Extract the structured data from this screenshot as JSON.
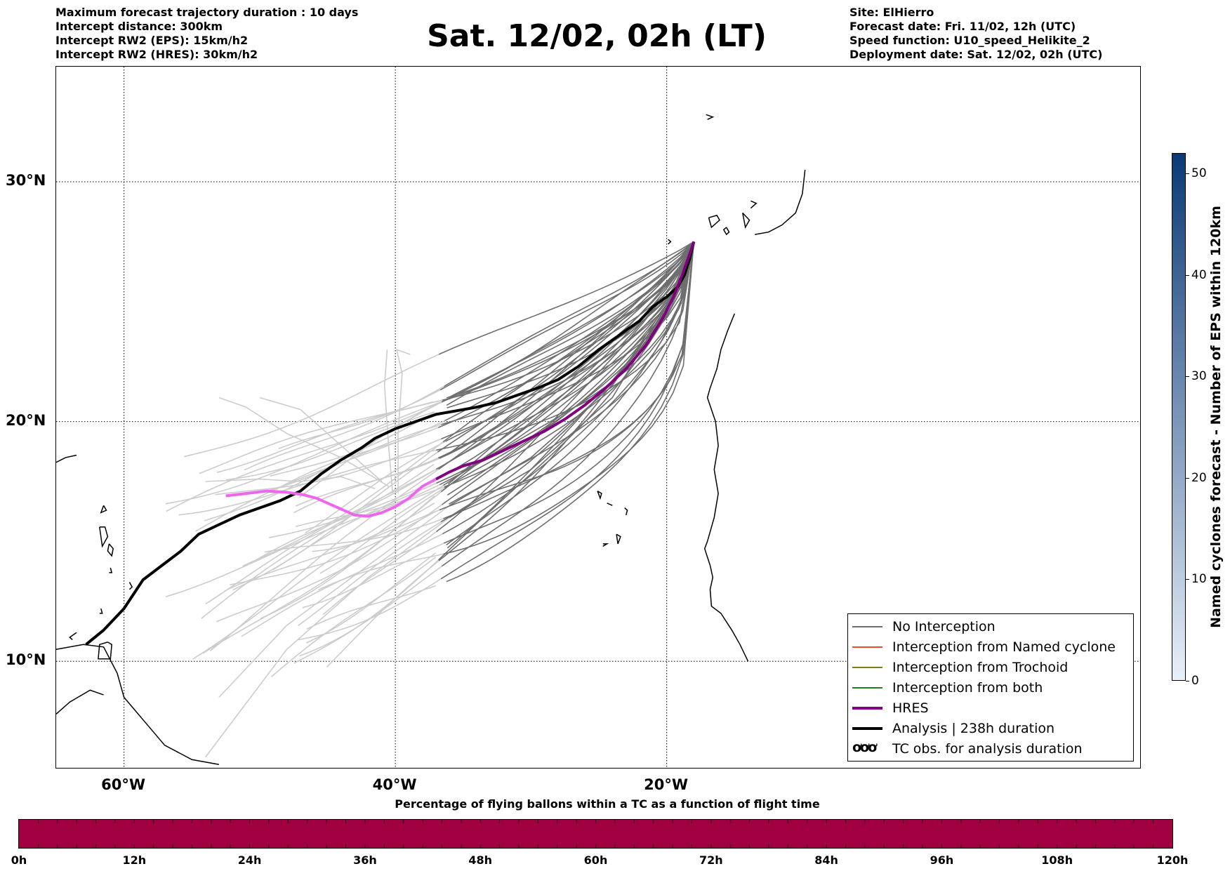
{
  "header": {
    "left_lines": [
      "Maximum forecast trajectory duration : 10 days",
      "Intercept distance: 300km",
      "Intercept RW2 (EPS):  15km/h2",
      "Intercept RW2 (HRES): 30km/h2"
    ],
    "title": "Sat. 12/02, 02h (LT)",
    "right_lines": [
      "Site: ElHierro",
      "Forecast date: Fri. 11/02, 12h (UTC)",
      "Speed function: U10_speed_Helikite_2",
      "Deployment date: Sat. 12/02, 02h (UTC)"
    ]
  },
  "map": {
    "lon_range": [
      -65,
      15
    ],
    "lat_range": [
      5.5,
      34.8
    ],
    "lat_ticks": [
      {
        "value": 30,
        "label": "30°N"
      },
      {
        "value": 20,
        "label": "20°N"
      },
      {
        "value": 10,
        "label": "10°N"
      }
    ],
    "lon_ticks": [
      {
        "value": -60,
        "label": "60°W"
      },
      {
        "value": -40,
        "label": "40°W"
      },
      {
        "value": -20,
        "label": "20°W"
      }
    ],
    "colors": {
      "no_interception": "#6e6e6e",
      "no_interception_faded": "#cccccc",
      "named_cyclone": "#e6501e",
      "trochoid": "#7f7f1a",
      "both": "#1f7f1f",
      "hres": "#800080",
      "hres_extended": "#ee66ee",
      "analysis": "#000000",
      "coast": "#000000"
    },
    "site": {
      "lon": -18.0,
      "lat": 27.5
    },
    "analysis_track": [
      [
        -62.8,
        10.7
      ],
      [
        -61.5,
        11.3
      ],
      [
        -60,
        12.2
      ],
      [
        -58.6,
        13.4
      ],
      [
        -57.2,
        14
      ],
      [
        -55.8,
        14.6
      ],
      [
        -54.5,
        15.3
      ],
      [
        -53,
        15.7
      ],
      [
        -51.5,
        16.1
      ],
      [
        -50,
        16.4
      ],
      [
        -48.5,
        16.7
      ],
      [
        -47,
        17.1
      ],
      [
        -45.5,
        17.8
      ],
      [
        -44,
        18.4
      ],
      [
        -42.5,
        18.9
      ],
      [
        -41.5,
        19.3
      ],
      [
        -40,
        19.7
      ],
      [
        -38.5,
        20
      ],
      [
        -37,
        20.3
      ],
      [
        -35.5,
        20.45
      ],
      [
        -34,
        20.6
      ],
      [
        -32.5,
        20.8
      ],
      [
        -31,
        21.1
      ],
      [
        -29.5,
        21.4
      ],
      [
        -28,
        21.75
      ],
      [
        -26.5,
        22.3
      ],
      [
        -25,
        23
      ],
      [
        -23.5,
        23.6
      ],
      [
        -22,
        24.2
      ],
      [
        -21,
        24.8
      ],
      [
        -20,
        25.2
      ],
      [
        -19.2,
        25.6
      ],
      [
        -18.7,
        26.1
      ],
      [
        -18.3,
        26.8
      ],
      [
        -18,
        27.5
      ]
    ],
    "hres_track": [
      [
        -52.5,
        16.9
      ],
      [
        -51,
        17
      ],
      [
        -49.5,
        17.1
      ],
      [
        -48,
        17.05
      ],
      [
        -46.8,
        16.95
      ],
      [
        -45.8,
        16.8
      ],
      [
        -45,
        16.6
      ],
      [
        -44,
        16.35
      ],
      [
        -43,
        16.1
      ],
      [
        -42,
        16.05
      ],
      [
        -41,
        16.2
      ],
      [
        -40,
        16.45
      ],
      [
        -39,
        16.8
      ],
      [
        -38,
        17.3
      ],
      [
        -37,
        17.6
      ],
      [
        -36,
        17.9
      ],
      [
        -35,
        18.15
      ],
      [
        -33.5,
        18.4
      ],
      [
        -32,
        18.8
      ],
      [
        -30.5,
        19.2
      ],
      [
        -29,
        19.6
      ],
      [
        -27.5,
        20.1
      ],
      [
        -26,
        20.7
      ],
      [
        -24.5,
        21.4
      ],
      [
        -23,
        22.2
      ],
      [
        -21.5,
        23.2
      ],
      [
        -20.3,
        24.3
      ],
      [
        -19.5,
        25.2
      ],
      [
        -18.8,
        26.2
      ],
      [
        -18.3,
        27
      ],
      [
        -18,
        27.5
      ]
    ],
    "hres_split_lon": -37.2,
    "ensemble": {
      "count": 50,
      "seed": 12345,
      "detail_lon": -37.0,
      "long_tracks": [
        [
          [
            -18,
            27.5
          ],
          [
            -20,
            24.8
          ],
          [
            -24,
            21
          ],
          [
            -30,
            18
          ],
          [
            -36,
            16
          ],
          [
            -42,
            13.5
          ],
          [
            -48,
            10.5
          ],
          [
            -54,
            6
          ]
        ],
        [
          [
            -18,
            27.5
          ],
          [
            -20,
            24.9
          ],
          [
            -24,
            21.5
          ],
          [
            -30,
            18.5
          ],
          [
            -36,
            16.5
          ],
          [
            -42,
            14
          ],
          [
            -48,
            11.5
          ],
          [
            -53,
            8.5
          ]
        ]
      ],
      "wander_tracks": [
        [
          [
            -40.2,
            17
          ],
          [
            -40.5,
            19
          ],
          [
            -40.8,
            21.5
          ],
          [
            -40.6,
            23
          ]
        ],
        [
          [
            -39.8,
            17
          ],
          [
            -39.8,
            19.5
          ],
          [
            -39.5,
            22
          ],
          [
            -39.9,
            23
          ],
          [
            -38.9,
            22.8
          ]
        ],
        [
          [
            -41,
            17.5
          ],
          [
            -43,
            18.5
          ],
          [
            -45,
            19.5
          ],
          [
            -47,
            20.5
          ],
          [
            -50,
            21
          ]
        ],
        [
          [
            -40.5,
            17.3
          ],
          [
            -44,
            18.5
          ],
          [
            -48,
            19.5
          ],
          [
            -51,
            20.6
          ],
          [
            -53,
            21
          ]
        ],
        [
          [
            -41.5,
            17.2
          ],
          [
            -44,
            17.7
          ],
          [
            -47,
            17.5
          ],
          [
            -50,
            17.6
          ],
          [
            -54,
            17.5
          ]
        ]
      ]
    },
    "coastlines": [
      [
        [
          -65,
          10.5
        ],
        [
          -63,
          10.7
        ],
        [
          -61.5,
          10.6
        ],
        [
          -60.5,
          9.5
        ],
        [
          -60,
          8.5
        ],
        [
          -58.5,
          7.5
        ],
        [
          -57,
          6.5
        ],
        [
          -55,
          5.9
        ],
        [
          -53,
          5.7
        ]
      ],
      [
        [
          -65,
          7.8
        ],
        [
          -64,
          8.3
        ],
        [
          -62.5,
          8.8
        ],
        [
          -61.5,
          8.6
        ]
      ],
      [
        [
          -61.2,
          10.8
        ],
        [
          -61.8,
          10.7
        ],
        [
          -61.9,
          10.1
        ],
        [
          -61,
          10.1
        ],
        [
          -60.9,
          10.7
        ],
        [
          -61.2,
          10.8
        ]
      ],
      [
        [
          -65,
          18.3
        ],
        [
          -64.3,
          18.5
        ],
        [
          -63.5,
          18.6
        ]
      ],
      [
        [
          -61.8,
          15.6
        ],
        [
          -61.4,
          15.6
        ],
        [
          -61.2,
          15.2
        ],
        [
          -61.6,
          14.8
        ],
        [
          -61.8,
          15.6
        ]
      ],
      [
        [
          -61.1,
          14.9
        ],
        [
          -60.8,
          14.7
        ],
        [
          -60.9,
          14.4
        ],
        [
          -61.2,
          14.6
        ],
        [
          -61.1,
          14.9
        ]
      ],
      [
        [
          -61,
          13.9
        ],
        [
          -60.9,
          13.7
        ],
        [
          -61.1,
          13.7
        ]
      ],
      [
        [
          -59.6,
          13.3
        ],
        [
          -59.4,
          13.1
        ],
        [
          -59.6,
          13
        ]
      ],
      [
        [
          -61.5,
          16.5
        ],
        [
          -61.3,
          16.3
        ],
        [
          -61.7,
          16.2
        ],
        [
          -61.5,
          16.5
        ]
      ],
      [
        [
          -61.7,
          12.2
        ],
        [
          -61.6,
          12
        ],
        [
          -61.8,
          12
        ]
      ],
      [
        [
          -63.5,
          11.2
        ],
        [
          -64,
          11
        ],
        [
          -63.8,
          10.9
        ]
      ],
      [
        [
          -19.9,
          27.6
        ],
        [
          -19.7,
          27.5
        ],
        [
          -19.9,
          27.4
        ]
      ],
      [
        [
          -16.9,
          28.5
        ],
        [
          -16.3,
          28.6
        ],
        [
          -16.1,
          28.4
        ],
        [
          -16.7,
          28.1
        ],
        [
          -16.9,
          28.5
        ]
      ],
      [
        [
          -15.6,
          28.1
        ],
        [
          -15.4,
          27.9
        ],
        [
          -15.6,
          27.8
        ],
        [
          -15.8,
          28
        ],
        [
          -15.6,
          28.1
        ]
      ],
      [
        [
          -14.4,
          28.7
        ],
        [
          -13.9,
          28.4
        ],
        [
          -14.2,
          28.1
        ],
        [
          -14.4,
          28.7
        ]
      ],
      [
        [
          -13.8,
          29.2
        ],
        [
          -13.4,
          29.1
        ],
        [
          -13.8,
          28.9
        ]
      ],
      [
        [
          -17.1,
          32.8
        ],
        [
          -16.6,
          32.7
        ],
        [
          -17,
          32.6
        ]
      ],
      [
        [
          -25.1,
          17.1
        ],
        [
          -24.8,
          17
        ],
        [
          -24.9,
          16.8
        ],
        [
          -25.1,
          17.1
        ]
      ],
      [
        [
          -24.4,
          16.6
        ],
        [
          -24,
          16.5
        ]
      ],
      [
        [
          -23.1,
          16.4
        ],
        [
          -22.9,
          16.3
        ],
        [
          -23,
          16.1
        ]
      ],
      [
        [
          -23.7,
          15.3
        ],
        [
          -23.4,
          15.2
        ],
        [
          -23.6,
          14.9
        ],
        [
          -23.7,
          15.3
        ]
      ],
      [
        [
          -24.7,
          14.9
        ],
        [
          -24.4,
          14.9
        ],
        [
          -24.7,
          14.8
        ]
      ],
      [
        [
          -15,
          24.5
        ],
        [
          -15.5,
          23.8
        ],
        [
          -16,
          23
        ],
        [
          -16.3,
          22.2
        ],
        [
          -16.8,
          21.4
        ],
        [
          -17,
          21
        ],
        [
          -16.4,
          20
        ],
        [
          -16.2,
          19
        ],
        [
          -16.5,
          18
        ],
        [
          -16.2,
          17
        ],
        [
          -16.5,
          16
        ],
        [
          -17,
          15
        ],
        [
          -17.2,
          14.7
        ],
        [
          -16.8,
          14
        ],
        [
          -16.6,
          13.5
        ],
        [
          -16.8,
          13
        ],
        [
          -16.7,
          12.3
        ],
        [
          -16,
          12
        ],
        [
          -15.2,
          11.3
        ],
        [
          -14.6,
          10.7
        ],
        [
          -14,
          10
        ]
      ],
      [
        [
          -13.5,
          27.8
        ],
        [
          -12.5,
          27.9
        ],
        [
          -11.5,
          28.2
        ],
        [
          -10.5,
          28.7
        ],
        [
          -10,
          29.5
        ],
        [
          -9.8,
          30.5
        ]
      ]
    ]
  },
  "legend": {
    "items": [
      {
        "key": "no_interception",
        "label": "No Interception",
        "style": "thin"
      },
      {
        "key": "named_cyclone",
        "label": "Interception from Named cyclone",
        "style": "thin"
      },
      {
        "key": "trochoid",
        "label": "Interception from Trochoid",
        "style": "thin"
      },
      {
        "key": "both",
        "label": "Interception from both",
        "style": "thin"
      },
      {
        "key": "hres",
        "label": "HRES",
        "style": "thick"
      },
      {
        "key": "analysis",
        "label": "Analysis | 238h duration",
        "style": "thick"
      },
      {
        "key": "tc_obs",
        "label": "TC obs. for analysis duration",
        "style": "glyph",
        "glyph": "ơơơ"
      }
    ]
  },
  "colorbar_vertical": {
    "label": "Named cyclones forecast - Number of EPS within 120km",
    "min": 0,
    "max": 52,
    "ticks": [
      0,
      10,
      20,
      30,
      40,
      50
    ],
    "color_low": "#e8f0f9",
    "color_high": "#0b3a75"
  },
  "colorbar_horizontal": {
    "title": "Percentage of flying ballons within a TC as a function of flight time",
    "fill_color": "#a00040",
    "tick_labels": [
      "0h",
      "12h",
      "24h",
      "36h",
      "48h",
      "60h",
      "72h",
      "84h",
      "96h",
      "108h",
      "120h"
    ],
    "minor_divisions": 60
  }
}
